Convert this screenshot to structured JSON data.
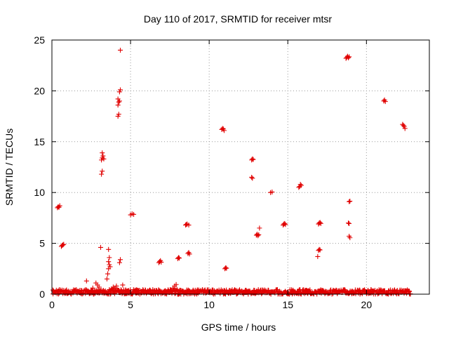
{
  "chart_data": {
    "type": "scatter",
    "title": "Day 110 of 2017, SRMTID for receiver mtsr",
    "xlabel": "GPS time / hours",
    "ylabel": "SRMTID / TECUs",
    "xlim": [
      0,
      24
    ],
    "ylim": [
      0,
      25
    ],
    "xticks": [
      0,
      5,
      10,
      15,
      20
    ],
    "yticks": [
      0,
      5,
      10,
      15,
      20,
      25
    ],
    "grid": true,
    "marker": "plus",
    "color": "#e00000",
    "series": [
      {
        "name": "SRMTID",
        "points": [
          [
            0.35,
            8.5
          ],
          [
            0.4,
            8.6
          ],
          [
            0.45,
            8.55
          ],
          [
            0.5,
            8.7
          ],
          [
            0.6,
            4.7
          ],
          [
            0.65,
            4.8
          ],
          [
            0.7,
            4.85
          ],
          [
            0.75,
            4.9
          ],
          [
            2.2,
            1.3
          ],
          [
            2.8,
            1.1
          ],
          [
            2.9,
            0.9
          ],
          [
            3.0,
            0.7
          ],
          [
            2.6,
            0.6
          ],
          [
            3.1,
            4.6
          ],
          [
            3.15,
            11.8
          ],
          [
            3.2,
            12.1
          ],
          [
            3.15,
            13.2
          ],
          [
            3.2,
            13.4
          ],
          [
            3.25,
            13.6
          ],
          [
            3.2,
            13.9
          ],
          [
            3.3,
            13.3
          ],
          [
            3.5,
            1.5
          ],
          [
            3.55,
            2.0
          ],
          [
            3.6,
            2.5
          ],
          [
            3.65,
            2.9
          ],
          [
            3.6,
            3.2
          ],
          [
            3.65,
            3.6
          ],
          [
            3.6,
            4.4
          ],
          [
            3.7,
            2.7
          ],
          [
            3.8,
            0.5
          ],
          [
            3.9,
            0.7
          ],
          [
            4.0,
            0.6
          ],
          [
            4.1,
            0.8
          ],
          [
            4.2,
            17.5
          ],
          [
            4.25,
            17.7
          ],
          [
            4.2,
            18.6
          ],
          [
            4.25,
            18.9
          ],
          [
            4.2,
            19.2
          ],
          [
            4.3,
            19.0
          ],
          [
            4.3,
            19.9
          ],
          [
            4.35,
            20.1
          ],
          [
            4.35,
            24.0
          ],
          [
            4.3,
            3.1
          ],
          [
            4.35,
            3.4
          ],
          [
            4.5,
            0.9
          ],
          [
            5.0,
            7.8
          ],
          [
            5.1,
            7.9
          ],
          [
            5.2,
            7.85
          ],
          [
            6.8,
            3.1
          ],
          [
            6.85,
            3.2
          ],
          [
            6.9,
            3.3
          ],
          [
            6.95,
            3.15
          ],
          [
            7.6,
            0.4
          ],
          [
            7.7,
            0.6
          ],
          [
            7.8,
            0.8
          ],
          [
            7.9,
            0.95
          ],
          [
            8.0,
            3.5
          ],
          [
            8.05,
            3.6
          ],
          [
            8.1,
            3.55
          ],
          [
            8.5,
            6.8
          ],
          [
            8.55,
            6.85
          ],
          [
            8.6,
            6.9
          ],
          [
            8.7,
            6.8
          ],
          [
            8.65,
            4.0
          ],
          [
            8.7,
            4.1
          ],
          [
            8.75,
            3.95
          ],
          [
            10.8,
            16.2
          ],
          [
            10.85,
            16.3
          ],
          [
            10.9,
            16.25
          ],
          [
            10.95,
            16.1
          ],
          [
            11.0,
            2.5
          ],
          [
            11.05,
            2.6
          ],
          [
            11.1,
            2.55
          ],
          [
            12.7,
            11.5
          ],
          [
            12.75,
            11.4
          ],
          [
            12.7,
            13.2
          ],
          [
            12.75,
            13.3
          ],
          [
            12.8,
            13.25
          ],
          [
            13.0,
            5.8
          ],
          [
            13.05,
            5.9
          ],
          [
            13.1,
            5.75
          ],
          [
            13.15,
            5.85
          ],
          [
            13.2,
            6.5
          ],
          [
            13.9,
            10.0
          ],
          [
            14.0,
            10.05
          ],
          [
            14.7,
            6.8
          ],
          [
            14.75,
            6.9
          ],
          [
            14.8,
            6.95
          ],
          [
            14.85,
            6.85
          ],
          [
            15.7,
            10.5
          ],
          [
            15.75,
            10.6
          ],
          [
            15.8,
            10.8
          ],
          [
            15.85,
            10.7
          ],
          [
            16.9,
            3.7
          ],
          [
            16.95,
            4.3
          ],
          [
            17.0,
            4.4
          ],
          [
            17.05,
            4.35
          ],
          [
            16.95,
            6.9
          ],
          [
            17.0,
            7.0
          ],
          [
            17.05,
            7.05
          ],
          [
            17.1,
            6.95
          ],
          [
            18.7,
            23.2
          ],
          [
            18.75,
            23.3
          ],
          [
            18.8,
            23.4
          ],
          [
            18.85,
            23.25
          ],
          [
            18.9,
            23.35
          ],
          [
            18.85,
            7.0
          ],
          [
            18.9,
            6.95
          ],
          [
            18.9,
            9.1
          ],
          [
            18.95,
            9.15
          ],
          [
            18.9,
            5.7
          ],
          [
            18.95,
            5.55
          ],
          [
            21.1,
            19.0
          ],
          [
            21.15,
            19.1
          ],
          [
            21.2,
            18.95
          ],
          [
            22.3,
            16.7
          ],
          [
            22.35,
            16.6
          ],
          [
            22.4,
            16.5
          ],
          [
            22.45,
            16.3
          ]
        ]
      }
    ],
    "baseline_band": {
      "description": "dense cluster of near-zero values across the day",
      "x_range": [
        0,
        22.8
      ],
      "y_range": [
        0.0,
        0.45
      ],
      "gaps_hours": []
    }
  }
}
